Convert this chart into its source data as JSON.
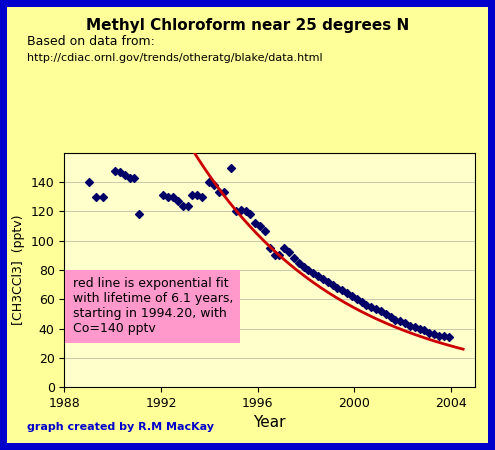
{
  "title": "Methyl Chloroform near 25 degrees N",
  "subtitle_line1": "Based on data from:",
  "subtitle_line2": "http://cdiac.ornl.gov/trends/otheratg/blake/data.html",
  "xlabel": "Year",
  "ylabel": "[CH3CCl3]  (pptv)",
  "footer": "graph created by R.M MacKay",
  "annotation": "red line is exponential fit\nwith lifetime of 6.1 years,\nstarting in 1994.20, with\nCo=140 pptv",
  "background_outer": "#ffff99",
  "background_border": "#0000cc",
  "background_inner": "#ffffcc",
  "annotation_bg": "#ff99cc",
  "title_color": "#000000",
  "subtitle_color": "#000000",
  "footer_color": "#0000cc",
  "marker_color": "#000066",
  "line_color": "#cc0000",
  "xlim": [
    1988,
    2005
  ],
  "ylim": [
    0,
    160
  ],
  "xticks": [
    1988,
    1992,
    1996,
    2000,
    2004
  ],
  "yticks": [
    0,
    20,
    40,
    60,
    80,
    100,
    120,
    140
  ],
  "exp_C0": 140,
  "exp_t0": 1994.2,
  "exp_tau": 6.1,
  "fit_xstart": 1993.0,
  "fit_xend": 2004.5,
  "data_points": [
    [
      1989.0,
      140
    ],
    [
      1989.3,
      130
    ],
    [
      1989.6,
      130
    ],
    [
      1990.1,
      148
    ],
    [
      1990.3,
      147
    ],
    [
      1990.5,
      145
    ],
    [
      1990.7,
      143
    ],
    [
      1990.9,
      143
    ],
    [
      1991.1,
      118
    ],
    [
      1992.1,
      131
    ],
    [
      1992.3,
      130
    ],
    [
      1992.5,
      130
    ],
    [
      1992.7,
      127
    ],
    [
      1992.9,
      124
    ],
    [
      1993.1,
      124
    ],
    [
      1993.3,
      131
    ],
    [
      1993.5,
      131
    ],
    [
      1993.7,
      130
    ],
    [
      1994.0,
      140
    ],
    [
      1994.2,
      138
    ],
    [
      1994.4,
      133
    ],
    [
      1994.6,
      133
    ],
    [
      1994.9,
      150
    ],
    [
      1995.1,
      120
    ],
    [
      1995.3,
      121
    ],
    [
      1995.5,
      120
    ],
    [
      1995.7,
      118
    ],
    [
      1995.9,
      112
    ],
    [
      1996.1,
      110
    ],
    [
      1996.3,
      107
    ],
    [
      1996.5,
      95
    ],
    [
      1996.7,
      90
    ],
    [
      1996.9,
      90
    ],
    [
      1997.1,
      95
    ],
    [
      1997.3,
      92
    ],
    [
      1997.5,
      88
    ],
    [
      1997.7,
      85
    ],
    [
      1997.9,
      82
    ],
    [
      1998.1,
      80
    ],
    [
      1998.3,
      78
    ],
    [
      1998.5,
      76
    ],
    [
      1998.7,
      74
    ],
    [
      1998.9,
      72
    ],
    [
      1999.1,
      70
    ],
    [
      1999.3,
      68
    ],
    [
      1999.5,
      66
    ],
    [
      1999.7,
      64
    ],
    [
      1999.9,
      62
    ],
    [
      2000.1,
      60
    ],
    [
      2000.3,
      58
    ],
    [
      2000.5,
      56
    ],
    [
      2000.7,
      55
    ],
    [
      2000.9,
      53
    ],
    [
      2001.1,
      52
    ],
    [
      2001.3,
      50
    ],
    [
      2001.5,
      48
    ],
    [
      2001.7,
      46
    ],
    [
      2001.9,
      45
    ],
    [
      2002.1,
      44
    ],
    [
      2002.3,
      42
    ],
    [
      2002.5,
      41
    ],
    [
      2002.7,
      40
    ],
    [
      2002.9,
      39
    ],
    [
      2003.1,
      37
    ],
    [
      2003.3,
      36
    ],
    [
      2003.5,
      35
    ],
    [
      2003.7,
      35
    ],
    [
      2003.9,
      34
    ]
  ]
}
